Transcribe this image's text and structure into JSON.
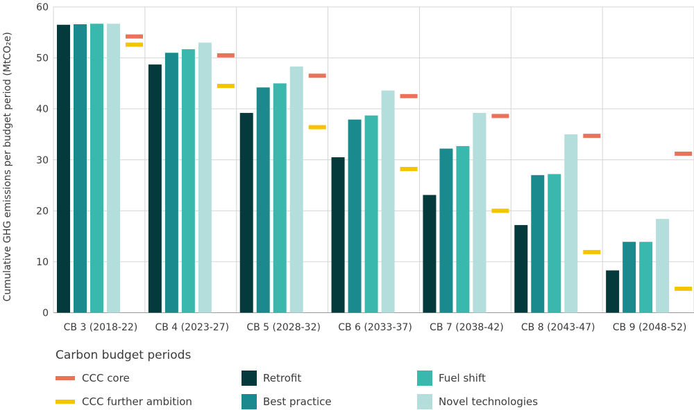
{
  "chart_data": {
    "type": "bar",
    "ylabel": "Cumulative GHG emissions per budget period (MtCO₂e)",
    "xlabel": "Carbon budget periods",
    "ylim": [
      0,
      60
    ],
    "yticks": [
      0,
      10,
      20,
      30,
      40,
      50,
      60
    ],
    "grid": true,
    "categories": [
      "CB 3 (2018-22)",
      "CB 4 (2023-27)",
      "CB 5 (2028-32)",
      "CB 6 (2033-37)",
      "CB 7 (2038-42)",
      "CB 8 (2043-47)",
      "CB 9 (2048-52)"
    ],
    "series": [
      {
        "name": "Retrofit",
        "color": "#043a3c",
        "values": [
          56.5,
          48.7,
          39.2,
          30.5,
          23.1,
          17.2,
          8.3
        ]
      },
      {
        "name": "Best practice",
        "color": "#1b8a8f",
        "values": [
          56.6,
          51.0,
          44.2,
          37.9,
          32.2,
          27.0,
          13.9
        ]
      },
      {
        "name": "Fuel shift",
        "color": "#3bb8ae",
        "values": [
          56.7,
          51.7,
          45.0,
          38.7,
          32.7,
          27.2,
          13.9
        ]
      },
      {
        "name": "Novel technologies",
        "color": "#b3dedc",
        "values": [
          56.7,
          53.0,
          48.3,
          43.6,
          39.2,
          35.0,
          18.4
        ]
      }
    ],
    "markers": [
      {
        "name": "CCC core",
        "color": "#e8735a",
        "values": [
          54.2,
          50.5,
          46.5,
          42.5,
          38.6,
          34.7,
          31.2
        ]
      },
      {
        "name": "CCC further ambition",
        "color": "#f5c400",
        "values": [
          52.6,
          44.5,
          36.4,
          28.2,
          20.0,
          11.9,
          4.7
        ]
      }
    ]
  },
  "legend": {
    "title": "Carbon budget periods",
    "items": [
      {
        "label": "CCC core",
        "kind": "line",
        "color": "#e8735a"
      },
      {
        "label": "CCC further ambition",
        "kind": "line",
        "color": "#f5c400"
      },
      {
        "label": "Retrofit",
        "kind": "box",
        "color": "#043a3c"
      },
      {
        "label": "Best practice",
        "kind": "box",
        "color": "#1b8a8f"
      },
      {
        "label": "Fuel shift",
        "kind": "box",
        "color": "#3bb8ae"
      },
      {
        "label": "Novel technologies",
        "kind": "box",
        "color": "#b3dedc"
      }
    ]
  }
}
